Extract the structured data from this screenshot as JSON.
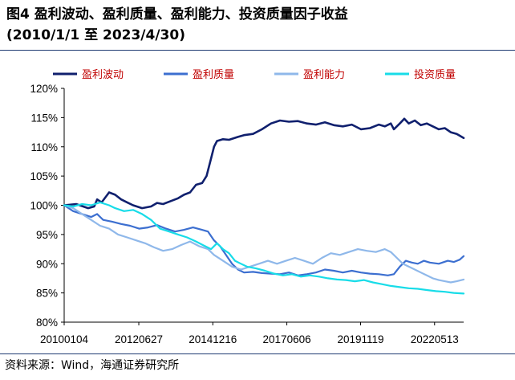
{
  "header": {
    "title": "图4 盈利波动、盈利质量、盈利能力、投资质量因子收益",
    "subtitle": "(2010/1/1 至 2023/4/30)"
  },
  "footer": {
    "source": "资料来源：Wind，海通证券研究所"
  },
  "chart_data": {
    "type": "line",
    "title": "图4 盈利波动、盈利质量、盈利能力、投资质量因子收益",
    "subtitle": "(2010/1/1 至 2023/4/30)",
    "xlabel": "",
    "ylabel": "",
    "ylim": [
      0.8,
      1.2
    ],
    "xlim": [
      2010.0,
      2023.33
    ],
    "grid": false,
    "legend_position": "top",
    "y_ticks": [
      "80%",
      "85%",
      "90%",
      "95%",
      "100%",
      "105%",
      "110%",
      "115%",
      "120%"
    ],
    "x_ticks": [
      "20100104",
      "20120627",
      "20141216",
      "20170606",
      "20191119",
      "20220513"
    ],
    "x_tick_values": [
      2010.0,
      2012.49,
      2014.96,
      2017.43,
      2019.89,
      2022.36
    ],
    "series": [
      {
        "name": "盈利波动",
        "color": "#10206e",
        "width": 2.6,
        "points": [
          [
            2010.0,
            1.0
          ],
          [
            2010.4,
            1.002
          ],
          [
            2010.8,
            0.995
          ],
          [
            2011.0,
            0.998
          ],
          [
            2011.1,
            1.01
          ],
          [
            2011.25,
            1.005
          ],
          [
            2011.5,
            1.022
          ],
          [
            2011.7,
            1.018
          ],
          [
            2011.9,
            1.01
          ],
          [
            2012.1,
            1.005
          ],
          [
            2012.3,
            1.0
          ],
          [
            2012.6,
            0.995
          ],
          [
            2012.9,
            0.998
          ],
          [
            2013.1,
            1.004
          ],
          [
            2013.3,
            1.002
          ],
          [
            2013.6,
            1.008
          ],
          [
            2013.8,
            1.012
          ],
          [
            2014.0,
            1.018
          ],
          [
            2014.2,
            1.022
          ],
          [
            2014.4,
            1.035
          ],
          [
            2014.6,
            1.038
          ],
          [
            2014.75,
            1.05
          ],
          [
            2014.9,
            1.08
          ],
          [
            2015.0,
            1.1
          ],
          [
            2015.1,
            1.11
          ],
          [
            2015.3,
            1.113
          ],
          [
            2015.5,
            1.112
          ],
          [
            2015.8,
            1.117
          ],
          [
            2016.0,
            1.12
          ],
          [
            2016.3,
            1.122
          ],
          [
            2016.6,
            1.13
          ],
          [
            2016.9,
            1.14
          ],
          [
            2017.2,
            1.145
          ],
          [
            2017.5,
            1.143
          ],
          [
            2017.8,
            1.144
          ],
          [
            2018.1,
            1.14
          ],
          [
            2018.4,
            1.138
          ],
          [
            2018.7,
            1.142
          ],
          [
            2019.0,
            1.137
          ],
          [
            2019.3,
            1.135
          ],
          [
            2019.6,
            1.138
          ],
          [
            2019.9,
            1.13
          ],
          [
            2020.2,
            1.132
          ],
          [
            2020.5,
            1.138
          ],
          [
            2020.7,
            1.135
          ],
          [
            2020.9,
            1.14
          ],
          [
            2021.0,
            1.13
          ],
          [
            2021.2,
            1.14
          ],
          [
            2021.35,
            1.148
          ],
          [
            2021.5,
            1.14
          ],
          [
            2021.7,
            1.145
          ],
          [
            2021.9,
            1.137
          ],
          [
            2022.1,
            1.14
          ],
          [
            2022.3,
            1.135
          ],
          [
            2022.5,
            1.13
          ],
          [
            2022.7,
            1.132
          ],
          [
            2022.9,
            1.125
          ],
          [
            2023.1,
            1.122
          ],
          [
            2023.33,
            1.115
          ]
        ]
      },
      {
        "name": "盈利质量",
        "color": "#3c6fd0",
        "width": 2.2,
        "points": [
          [
            2010.0,
            1.0
          ],
          [
            2010.3,
            0.99
          ],
          [
            2010.6,
            0.985
          ],
          [
            2010.9,
            0.98
          ],
          [
            2011.1,
            0.985
          ],
          [
            2011.3,
            0.975
          ],
          [
            2011.6,
            0.972
          ],
          [
            2011.9,
            0.968
          ],
          [
            2012.2,
            0.965
          ],
          [
            2012.5,
            0.96
          ],
          [
            2012.8,
            0.962
          ],
          [
            2013.1,
            0.966
          ],
          [
            2013.4,
            0.96
          ],
          [
            2013.7,
            0.955
          ],
          [
            2014.0,
            0.958
          ],
          [
            2014.3,
            0.962
          ],
          [
            2014.6,
            0.958
          ],
          [
            2014.8,
            0.955
          ],
          [
            2015.0,
            0.94
          ],
          [
            2015.2,
            0.93
          ],
          [
            2015.4,
            0.915
          ],
          [
            2015.6,
            0.9
          ],
          [
            2015.8,
            0.89
          ],
          [
            2016.0,
            0.885
          ],
          [
            2016.3,
            0.886
          ],
          [
            2016.6,
            0.884
          ],
          [
            2016.9,
            0.883
          ],
          [
            2017.2,
            0.882
          ],
          [
            2017.5,
            0.885
          ],
          [
            2017.8,
            0.88
          ],
          [
            2018.1,
            0.882
          ],
          [
            2018.4,
            0.885
          ],
          [
            2018.7,
            0.89
          ],
          [
            2019.0,
            0.888
          ],
          [
            2019.3,
            0.885
          ],
          [
            2019.6,
            0.888
          ],
          [
            2019.9,
            0.885
          ],
          [
            2020.2,
            0.883
          ],
          [
            2020.5,
            0.882
          ],
          [
            2020.8,
            0.88
          ],
          [
            2021.0,
            0.882
          ],
          [
            2021.2,
            0.895
          ],
          [
            2021.4,
            0.905
          ],
          [
            2021.6,
            0.902
          ],
          [
            2021.8,
            0.9
          ],
          [
            2022.0,
            0.905
          ],
          [
            2022.2,
            0.902
          ],
          [
            2022.5,
            0.9
          ],
          [
            2022.8,
            0.905
          ],
          [
            2023.0,
            0.903
          ],
          [
            2023.2,
            0.907
          ],
          [
            2023.33,
            0.913
          ]
        ]
      },
      {
        "name": "盈利能力",
        "color": "#8fb8ea",
        "width": 2.2,
        "points": [
          [
            2010.0,
            1.0
          ],
          [
            2010.3,
            0.995
          ],
          [
            2010.6,
            0.985
          ],
          [
            2010.9,
            0.975
          ],
          [
            2011.2,
            0.965
          ],
          [
            2011.5,
            0.96
          ],
          [
            2011.8,
            0.95
          ],
          [
            2012.1,
            0.945
          ],
          [
            2012.4,
            0.94
          ],
          [
            2012.7,
            0.935
          ],
          [
            2013.0,
            0.928
          ],
          [
            2013.3,
            0.922
          ],
          [
            2013.6,
            0.925
          ],
          [
            2013.9,
            0.932
          ],
          [
            2014.2,
            0.938
          ],
          [
            2014.5,
            0.93
          ],
          [
            2014.8,
            0.925
          ],
          [
            2015.0,
            0.915
          ],
          [
            2015.3,
            0.905
          ],
          [
            2015.6,
            0.895
          ],
          [
            2015.9,
            0.89
          ],
          [
            2016.2,
            0.895
          ],
          [
            2016.5,
            0.9
          ],
          [
            2016.8,
            0.905
          ],
          [
            2017.1,
            0.9
          ],
          [
            2017.4,
            0.905
          ],
          [
            2017.7,
            0.91
          ],
          [
            2018.0,
            0.905
          ],
          [
            2018.3,
            0.9
          ],
          [
            2018.6,
            0.91
          ],
          [
            2018.9,
            0.918
          ],
          [
            2019.2,
            0.915
          ],
          [
            2019.5,
            0.92
          ],
          [
            2019.8,
            0.925
          ],
          [
            2020.1,
            0.922
          ],
          [
            2020.4,
            0.92
          ],
          [
            2020.7,
            0.925
          ],
          [
            2020.9,
            0.92
          ],
          [
            2021.1,
            0.91
          ],
          [
            2021.3,
            0.9
          ],
          [
            2021.5,
            0.895
          ],
          [
            2021.7,
            0.89
          ],
          [
            2021.9,
            0.885
          ],
          [
            2022.1,
            0.88
          ],
          [
            2022.3,
            0.875
          ],
          [
            2022.5,
            0.872
          ],
          [
            2022.7,
            0.87
          ],
          [
            2022.9,
            0.868
          ],
          [
            2023.1,
            0.87
          ],
          [
            2023.33,
            0.873
          ]
        ]
      },
      {
        "name": "投资质量",
        "color": "#18dce8",
        "width": 2.2,
        "points": [
          [
            2010.0,
            1.0
          ],
          [
            2010.3,
            0.998
          ],
          [
            2010.6,
            1.002
          ],
          [
            2010.9,
            1.0
          ],
          [
            2011.2,
            1.005
          ],
          [
            2011.5,
            1.0
          ],
          [
            2011.7,
            0.995
          ],
          [
            2012.0,
            0.99
          ],
          [
            2012.3,
            0.992
          ],
          [
            2012.6,
            0.985
          ],
          [
            2012.9,
            0.975
          ],
          [
            2013.2,
            0.96
          ],
          [
            2013.5,
            0.955
          ],
          [
            2013.8,
            0.95
          ],
          [
            2014.1,
            0.945
          ],
          [
            2014.4,
            0.938
          ],
          [
            2014.7,
            0.93
          ],
          [
            2014.9,
            0.925
          ],
          [
            2015.1,
            0.935
          ],
          [
            2015.3,
            0.925
          ],
          [
            2015.5,
            0.918
          ],
          [
            2015.7,
            0.905
          ],
          [
            2015.9,
            0.9
          ],
          [
            2016.1,
            0.895
          ],
          [
            2016.4,
            0.892
          ],
          [
            2016.7,
            0.888
          ],
          [
            2017.0,
            0.883
          ],
          [
            2017.3,
            0.88
          ],
          [
            2017.6,
            0.882
          ],
          [
            2017.9,
            0.878
          ],
          [
            2018.2,
            0.88
          ],
          [
            2018.5,
            0.878
          ],
          [
            2018.8,
            0.875
          ],
          [
            2019.1,
            0.873
          ],
          [
            2019.4,
            0.872
          ],
          [
            2019.7,
            0.87
          ],
          [
            2020.0,
            0.872
          ],
          [
            2020.3,
            0.868
          ],
          [
            2020.6,
            0.865
          ],
          [
            2020.9,
            0.862
          ],
          [
            2021.2,
            0.86
          ],
          [
            2021.5,
            0.858
          ],
          [
            2021.8,
            0.857
          ],
          [
            2022.1,
            0.855
          ],
          [
            2022.4,
            0.853
          ],
          [
            2022.7,
            0.852
          ],
          [
            2023.0,
            0.85
          ],
          [
            2023.33,
            0.849
          ]
        ]
      }
    ]
  }
}
